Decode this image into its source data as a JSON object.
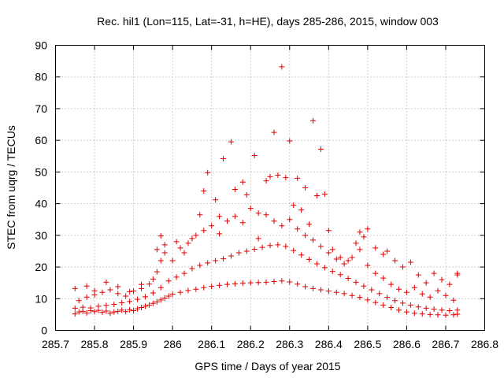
{
  "chart_data": {
    "type": "scatter",
    "title": "Rec. hil1 (Lon=115, Lat=-31, h=HE), days 285-286, 2015, window 003",
    "xlabel": "GPS time / Days of year 2015",
    "ylabel": "STEC from uqrg / TECUs",
    "xlim": [
      285.7,
      286.8
    ],
    "ylim": [
      0,
      90
    ],
    "xticks": [
      "285.7",
      "285.8",
      "285.9",
      "286",
      "286.1",
      "286.2",
      "286.3",
      "286.4",
      "286.5",
      "286.6",
      "286.7",
      "286.8"
    ],
    "yticks": [
      "0",
      "10",
      "20",
      "30",
      "40",
      "50",
      "60",
      "70",
      "80",
      "90"
    ],
    "grid": true,
    "marker": "+",
    "color": "#e00000",
    "series": [
      {
        "name": "STEC",
        "points": [
          [
            285.75,
            5.2
          ],
          [
            285.76,
            5.8
          ],
          [
            285.77,
            6.0
          ],
          [
            285.78,
            5.5
          ],
          [
            285.79,
            6.2
          ],
          [
            285.8,
            5.9
          ],
          [
            285.81,
            6.3
          ],
          [
            285.82,
            5.7
          ],
          [
            285.83,
            6.1
          ],
          [
            285.84,
            5.4
          ],
          [
            285.85,
            5.8
          ],
          [
            285.86,
            6.0
          ],
          [
            285.87,
            6.4
          ],
          [
            285.88,
            5.9
          ],
          [
            285.89,
            6.5
          ],
          [
            285.9,
            6.2
          ],
          [
            285.91,
            6.8
          ],
          [
            285.92,
            7.2
          ],
          [
            285.93,
            7.6
          ],
          [
            285.94,
            8.0
          ],
          [
            285.95,
            8.5
          ],
          [
            285.96,
            9.0
          ],
          [
            285.97,
            9.6
          ],
          [
            285.98,
            10.2
          ],
          [
            285.99,
            10.8
          ],
          [
            286.0,
            11.4
          ],
          [
            286.02,
            12.0
          ],
          [
            286.04,
            12.6
          ],
          [
            286.06,
            13.0
          ],
          [
            286.08,
            13.5
          ],
          [
            286.1,
            13.9
          ],
          [
            286.12,
            14.2
          ],
          [
            286.14,
            14.5
          ],
          [
            286.16,
            14.7
          ],
          [
            286.18,
            14.9
          ],
          [
            286.2,
            15.0
          ],
          [
            286.22,
            15.1
          ],
          [
            286.24,
            15.2
          ],
          [
            286.26,
            15.4
          ],
          [
            286.28,
            15.6
          ],
          [
            286.3,
            15.3
          ],
          [
            286.32,
            14.6
          ],
          [
            286.34,
            13.8
          ],
          [
            286.36,
            13.2
          ],
          [
            286.38,
            12.8
          ],
          [
            286.4,
            12.4
          ],
          [
            286.42,
            12.0
          ],
          [
            286.44,
            11.6
          ],
          [
            286.46,
            11.0
          ],
          [
            286.48,
            10.4
          ],
          [
            286.5,
            9.6
          ],
          [
            286.52,
            8.8
          ],
          [
            286.54,
            8.0
          ],
          [
            286.56,
            7.2
          ],
          [
            286.58,
            6.4
          ],
          [
            286.6,
            5.8
          ],
          [
            286.62,
            5.4
          ],
          [
            286.64,
            5.2
          ],
          [
            286.66,
            5.0
          ],
          [
            286.68,
            4.9
          ],
          [
            286.7,
            4.8
          ],
          [
            286.72,
            4.9
          ],
          [
            286.73,
            5.1
          ],
          [
            285.75,
            7.0
          ],
          [
            285.77,
            7.3
          ],
          [
            285.79,
            7.1
          ],
          [
            285.81,
            7.6
          ],
          [
            285.83,
            7.9
          ],
          [
            285.85,
            8.2
          ],
          [
            285.87,
            8.7
          ],
          [
            285.89,
            9.1
          ],
          [
            285.91,
            9.8
          ],
          [
            285.93,
            10.6
          ],
          [
            285.95,
            11.8
          ],
          [
            285.97,
            13.5
          ],
          [
            285.99,
            15.6
          ],
          [
            286.01,
            16.8
          ],
          [
            286.03,
            18.0
          ],
          [
            286.05,
            19.5
          ],
          [
            286.07,
            20.5
          ],
          [
            286.09,
            21.3
          ],
          [
            286.11,
            22.0
          ],
          [
            286.13,
            22.6
          ],
          [
            286.15,
            23.5
          ],
          [
            286.17,
            24.5
          ],
          [
            286.19,
            25.0
          ],
          [
            286.21,
            25.6
          ],
          [
            286.23,
            26.2
          ],
          [
            286.25,
            26.8
          ],
          [
            286.27,
            27.0
          ],
          [
            286.29,
            26.5
          ],
          [
            286.31,
            25.2
          ],
          [
            286.33,
            23.8
          ],
          [
            286.35,
            22.4
          ],
          [
            286.37,
            21.0
          ],
          [
            286.39,
            19.8
          ],
          [
            286.41,
            18.6
          ],
          [
            286.43,
            17.6
          ],
          [
            286.45,
            16.4
          ],
          [
            286.47,
            15.2
          ],
          [
            286.49,
            14.0
          ],
          [
            286.51,
            12.8
          ],
          [
            286.53,
            11.6
          ],
          [
            286.55,
            10.4
          ],
          [
            286.57,
            9.4
          ],
          [
            286.59,
            8.6
          ],
          [
            286.61,
            8.0
          ],
          [
            286.63,
            7.4
          ],
          [
            286.65,
            7.0
          ],
          [
            286.67,
            6.7
          ],
          [
            286.69,
            6.4
          ],
          [
            286.71,
            6.2
          ],
          [
            286.73,
            6.4
          ],
          [
            285.76,
            9.4
          ],
          [
            285.78,
            10.5
          ],
          [
            285.8,
            11.2
          ],
          [
            285.82,
            12.0
          ],
          [
            285.84,
            12.8
          ],
          [
            285.86,
            11.6
          ],
          [
            285.88,
            10.8
          ],
          [
            285.9,
            12.4
          ],
          [
            285.92,
            13.2
          ],
          [
            285.94,
            14.6
          ],
          [
            285.96,
            18.5
          ],
          [
            285.97,
            22.0
          ],
          [
            285.98,
            24.5
          ],
          [
            286.0,
            22.0
          ],
          [
            286.02,
            26.0
          ],
          [
            286.04,
            27.5
          ],
          [
            286.06,
            30.0
          ],
          [
            286.08,
            31.5
          ],
          [
            286.1,
            33.0
          ],
          [
            286.12,
            30.5
          ],
          [
            286.14,
            34.5
          ],
          [
            286.16,
            36.0
          ],
          [
            286.18,
            34.0
          ],
          [
            286.2,
            38.5
          ],
          [
            286.22,
            37.0
          ],
          [
            286.24,
            36.5
          ],
          [
            286.26,
            34.5
          ],
          [
            286.28,
            33.0
          ],
          [
            286.3,
            35.0
          ],
          [
            286.32,
            32.0
          ],
          [
            286.34,
            30.0
          ],
          [
            286.36,
            28.5
          ],
          [
            286.38,
            26.5
          ],
          [
            286.4,
            24.5
          ],
          [
            286.42,
            22.5
          ],
          [
            286.44,
            21.0
          ],
          [
            286.46,
            23.0
          ],
          [
            286.48,
            25.5
          ],
          [
            286.5,
            20.5
          ],
          [
            286.52,
            18.0
          ],
          [
            286.54,
            16.5
          ],
          [
            286.56,
            14.5
          ],
          [
            286.58,
            13.0
          ],
          [
            286.6,
            12.0
          ],
          [
            286.62,
            13.5
          ],
          [
            286.64,
            11.5
          ],
          [
            286.66,
            10.5
          ],
          [
            286.68,
            12.5
          ],
          [
            286.7,
            11.0
          ],
          [
            286.72,
            9.5
          ],
          [
            285.75,
            13.2
          ],
          [
            285.78,
            14.0
          ],
          [
            285.8,
            12.5
          ],
          [
            285.83,
            15.2
          ],
          [
            285.86,
            13.8
          ],
          [
            285.89,
            12.2
          ],
          [
            285.92,
            14.5
          ],
          [
            285.95,
            16.2
          ],
          [
            285.96,
            25.5
          ],
          [
            285.97,
            29.8
          ],
          [
            285.98,
            27.0
          ],
          [
            286.01,
            28.0
          ],
          [
            286.03,
            24.5
          ],
          [
            286.05,
            29.0
          ],
          [
            286.07,
            36.5
          ],
          [
            286.08,
            44.0
          ],
          [
            286.09,
            49.8
          ],
          [
            286.11,
            41.2
          ],
          [
            286.12,
            36.0
          ],
          [
            286.13,
            54.2
          ],
          [
            286.15,
            59.5
          ],
          [
            286.16,
            44.5
          ],
          [
            286.18,
            46.8
          ],
          [
            286.19,
            42.8
          ],
          [
            286.21,
            55.2
          ],
          [
            286.22,
            29.0
          ],
          [
            286.24,
            47.2
          ],
          [
            286.25,
            48.5
          ],
          [
            286.26,
            62.5
          ],
          [
            286.27,
            49.0
          ],
          [
            286.28,
            83.2
          ],
          [
            286.29,
            48.2
          ],
          [
            286.3,
            59.8
          ],
          [
            286.31,
            39.5
          ],
          [
            286.32,
            48.0
          ],
          [
            286.33,
            38.0
          ],
          [
            286.34,
            45.0
          ],
          [
            286.35,
            33.5
          ],
          [
            286.36,
            66.2
          ],
          [
            286.37,
            42.5
          ],
          [
            286.38,
            57.2
          ],
          [
            286.39,
            43.0
          ],
          [
            286.4,
            31.5
          ],
          [
            286.41,
            25.5
          ],
          [
            286.43,
            23.0
          ],
          [
            286.45,
            22.0
          ],
          [
            286.47,
            27.5
          ],
          [
            286.48,
            31.0
          ],
          [
            286.49,
            29.5
          ],
          [
            286.5,
            32.0
          ],
          [
            286.52,
            26.0
          ],
          [
            286.54,
            24.0
          ],
          [
            286.55,
            25.0
          ],
          [
            286.57,
            22.0
          ],
          [
            286.59,
            20.0
          ],
          [
            286.61,
            21.5
          ],
          [
            286.63,
            17.5
          ],
          [
            286.65,
            15.0
          ],
          [
            286.67,
            18.0
          ],
          [
            286.69,
            16.0
          ],
          [
            286.71,
            14.5
          ],
          [
            286.73,
            17.5
          ],
          [
            286.73,
            18.0
          ]
        ]
      }
    ]
  }
}
